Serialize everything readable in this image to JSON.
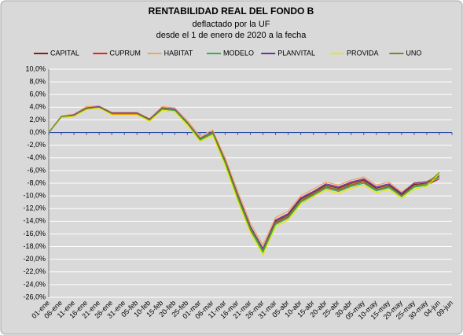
{
  "chart_data": {
    "type": "line",
    "title": "RENTABILIDAD REAL DEL FONDO B",
    "subtitle": [
      "deflactado por la UF",
      "desde el 1 de enero de 2020 a la fecha"
    ],
    "categories": [
      "01-ene",
      "06-ene",
      "11-ene",
      "16-ene",
      "21-ene",
      "26-ene",
      "31-ene",
      "05-feb",
      "10-feb",
      "15-feb",
      "20-feb",
      "25-feb",
      "01-mar",
      "06-mar",
      "11-mar",
      "16-mar",
      "21-mar",
      "26-mar",
      "31-mar",
      "05-abr",
      "10-abr",
      "15-abr",
      "20-abr",
      "25-abr",
      "30-abr",
      "05-may",
      "10-may",
      "15-may",
      "20-may",
      "25-may",
      "30-may",
      "04-jun",
      "09-jun"
    ],
    "series": [
      {
        "name": "CAPITAL",
        "color": "#8b1a1a",
        "values": [
          0,
          2.5,
          2.7,
          3.8,
          4.0,
          3.0,
          3.0,
          3.0,
          2.0,
          3.8,
          3.6,
          1.5,
          -1.0,
          0.0,
          -4.5,
          -10.0,
          -15.0,
          -18.5,
          -14.0,
          -13.0,
          -10.5,
          -9.5,
          -8.3,
          -8.8,
          -8.0,
          -7.5,
          -8.8,
          -8.3,
          -9.8,
          -8.2,
          -8.0,
          -7.0,
          null
        ]
      },
      {
        "name": "CUPRUM",
        "color": "#e3231f",
        "values": [
          0,
          2.4,
          2.6,
          3.7,
          4.0,
          2.9,
          2.9,
          2.9,
          1.9,
          3.7,
          3.5,
          1.4,
          -1.1,
          -0.1,
          -4.7,
          -10.3,
          -15.4,
          -18.8,
          -14.3,
          -13.3,
          -10.8,
          -9.7,
          -8.6,
          -9.1,
          -8.3,
          -7.8,
          -9.1,
          -8.6,
          -10.1,
          -8.5,
          -8.3,
          -7.3,
          null
        ]
      },
      {
        "name": "HABITAT",
        "color": "#f4a460",
        "values": [
          0,
          2.6,
          2.9,
          4.1,
          4.2,
          3.2,
          3.2,
          3.2,
          2.2,
          4.1,
          3.9,
          1.9,
          -0.6,
          0.4,
          -4.0,
          -9.3,
          -14.3,
          -17.8,
          -13.4,
          -12.4,
          -10.0,
          -8.9,
          -7.8,
          -8.3,
          -7.5,
          -7.0,
          -8.3,
          -7.8,
          -9.4,
          -7.9,
          -7.7,
          -6.6,
          null
        ]
      },
      {
        "name": "MODELO",
        "color": "#2fb35a",
        "values": [
          0,
          2.5,
          2.7,
          3.8,
          4.0,
          3.0,
          3.0,
          3.0,
          2.0,
          3.7,
          3.5,
          1.4,
          -1.2,
          -0.2,
          -4.8,
          -10.4,
          -15.3,
          -18.9,
          -14.5,
          -13.5,
          -11.0,
          -9.9,
          -8.8,
          -9.3,
          -8.5,
          -8.0,
          -9.2,
          -8.7,
          -10.1,
          -8.6,
          -8.3,
          -7.0,
          null
        ]
      },
      {
        "name": "PLANVITAL",
        "color": "#7030a0",
        "values": [
          0,
          2.5,
          2.8,
          3.9,
          4.1,
          3.1,
          3.1,
          3.1,
          2.1,
          3.9,
          3.7,
          1.6,
          -0.9,
          0.1,
          -4.4,
          -9.8,
          -14.8,
          -18.3,
          -13.8,
          -12.8,
          -10.3,
          -9.3,
          -8.1,
          -8.6,
          -7.8,
          -7.3,
          -8.6,
          -8.1,
          -9.6,
          -8.0,
          -7.8,
          -6.8,
          null
        ]
      },
      {
        "name": "PROVIDA",
        "color": "#e8e800",
        "values": [
          0,
          2.4,
          2.6,
          3.6,
          3.9,
          2.8,
          2.8,
          2.8,
          1.8,
          3.5,
          3.3,
          1.2,
          -1.4,
          -0.4,
          -5.2,
          -10.8,
          -15.8,
          -19.3,
          -14.8,
          -13.8,
          -11.3,
          -10.1,
          -9.1,
          -9.6,
          -8.8,
          -8.3,
          -9.5,
          -9.0,
          -10.4,
          -8.9,
          -8.5,
          -6.5,
          null
        ]
      },
      {
        "name": "UNO",
        "color": "#6b8e23",
        "values": [
          0,
          2.5,
          2.7,
          3.8,
          4.0,
          3.0,
          3.0,
          3.0,
          2.0,
          3.8,
          3.6,
          1.5,
          -1.0,
          0.0,
          -4.6,
          -10.1,
          -15.1,
          -18.6,
          -14.2,
          -13.2,
          -10.7,
          -9.6,
          -8.5,
          -9.0,
          -8.2,
          -7.7,
          -9.0,
          -8.5,
          -10.0,
          -8.4,
          -8.1,
          -6.3,
          null
        ]
      }
    ],
    "ylim": [
      -26,
      10
    ],
    "yticks": [
      {
        "value": -26,
        "label": "-26,0%"
      },
      {
        "value": -24,
        "label": "-24,0%"
      },
      {
        "value": -22,
        "label": "-22,0%"
      },
      {
        "value": -20,
        "label": "-20,0%"
      },
      {
        "value": -18,
        "label": "-18,0%"
      },
      {
        "value": -16,
        "label": "-16,0%"
      },
      {
        "value": -14,
        "label": "-14,0%"
      },
      {
        "value": -12,
        "label": "-12,0%"
      },
      {
        "value": -10,
        "label": "-10,0%"
      },
      {
        "value": -8,
        "label": "-8,0%"
      },
      {
        "value": -6,
        "label": "-6,0%"
      },
      {
        "value": -4,
        "label": "-4,0%"
      },
      {
        "value": -2,
        "label": "-2,0%"
      },
      {
        "value": 0,
        "label": "0,0%"
      },
      {
        "value": 2,
        "label": "2,0%"
      },
      {
        "value": 4,
        "label": "4,0%"
      },
      {
        "value": 6,
        "label": "6,0%"
      },
      {
        "value": 8,
        "label": "8,0%"
      },
      {
        "value": 10,
        "label": "10,0%"
      }
    ],
    "grid": true,
    "legend": "top"
  }
}
